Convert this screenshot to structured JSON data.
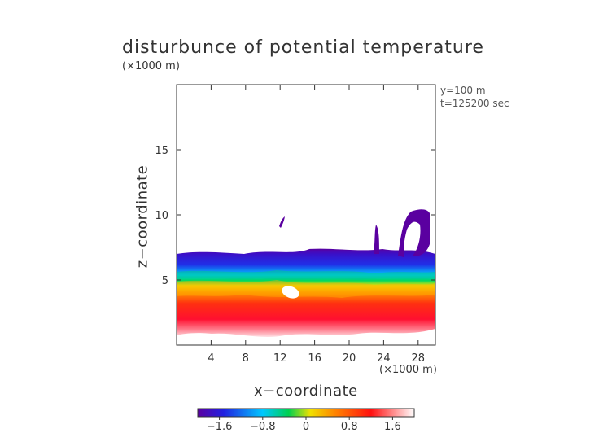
{
  "chart_data": {
    "type": "heatmap",
    "title": "disturbunce of potential temperature",
    "xlabel": "x−coordinate",
    "ylabel": "z−coordinate",
    "x_scale_label": "(×1000 m)",
    "y_scale_label": "(×1000 m)",
    "annotations": [
      "y=100 m",
      "t=125200 sec"
    ],
    "xlim": [
      0,
      30
    ],
    "ylim": [
      0,
      20
    ],
    "x_ticks": [
      4,
      8,
      12,
      16,
      20,
      24,
      28
    ],
    "x_tick_labels": [
      "4",
      "8",
      "12",
      "16",
      "20",
      "24",
      "28"
    ],
    "y_ticks": [
      5,
      10,
      15
    ],
    "y_tick_labels": [
      "5",
      "10",
      "15"
    ],
    "colorbar": {
      "range": [
        -2,
        2
      ],
      "ticks": [
        -1.6,
        -0.8,
        0,
        0.8,
        1.6
      ],
      "tick_labels": [
        "−1.6",
        "−0.8",
        "0",
        "0.8",
        "1.6"
      ],
      "colors": [
        "#5a00a0",
        "#2020e0",
        "#00c8ff",
        "#00d050",
        "#f0e000",
        "#ff8000",
        "#ff1010",
        "#ffffff"
      ]
    }
  }
}
